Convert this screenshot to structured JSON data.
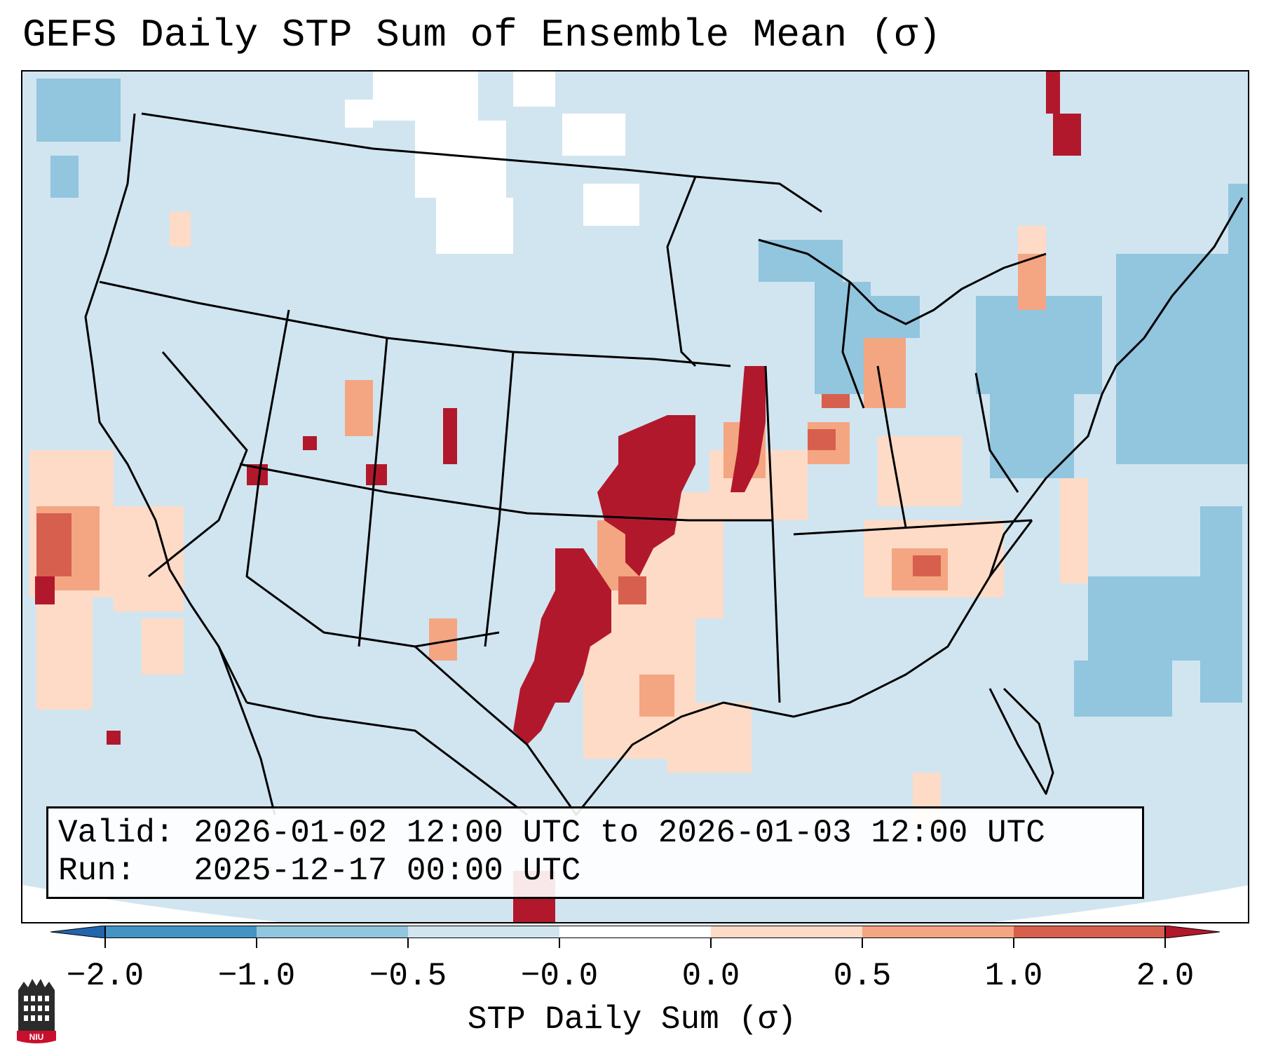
{
  "title": "GEFS Daily STP Sum of Ensemble Mean (σ)",
  "info": {
    "valid_line": "Valid: 2026-01-02 12:00 UTC to 2026-01-03 12:00 UTC",
    "run_line": "Run:   2025-12-17 00:00 UTC"
  },
  "colorbar": {
    "label": "STP Daily Sum (σ)",
    "ticks": [
      "−2.0",
      "−1.0",
      "−0.5",
      "−0.0",
      "0.0",
      "0.5",
      "1.0",
      "2.0"
    ],
    "colors": [
      "#2166ac",
      "#4393c3",
      "#92c5de",
      "#d1e5f0",
      "#ffffff",
      "#fddbc7",
      "#f4a582",
      "#d6604d",
      "#b2182b"
    ],
    "extend": "both"
  },
  "map": {
    "region": "CONUS",
    "background_color": "#d1e5f0",
    "outline_color": "#000000"
  },
  "logo": {
    "text": "NIU"
  }
}
